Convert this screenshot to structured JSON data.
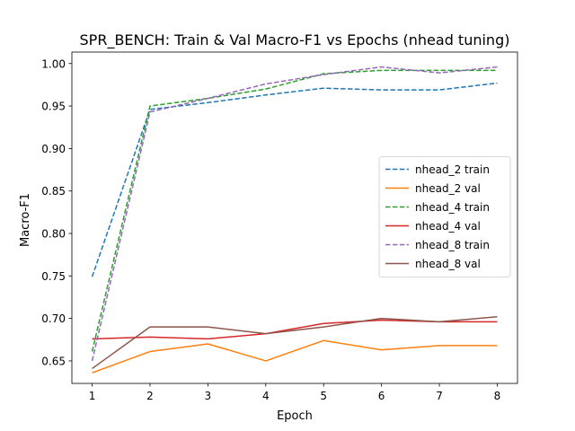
{
  "chart_data": {
    "type": "line",
    "title": "SPR_BENCH: Train & Val Macro-F1 vs Epochs (nhead tuning)",
    "xlabel": "Epoch",
    "ylabel": "Macro-F1",
    "x": [
      1,
      2,
      3,
      4,
      5,
      6,
      7,
      8
    ],
    "xlim": [
      0.65,
      8.35
    ],
    "ylim": [
      0.6235,
      1.0135
    ],
    "xticks": [
      "1",
      "2",
      "3",
      "4",
      "5",
      "6",
      "7",
      "8"
    ],
    "yticks": [
      0.65,
      0.7,
      0.75,
      0.8,
      0.85,
      0.9,
      0.95,
      1.0
    ],
    "ytick_labels": [
      "0.65",
      "0.70",
      "0.75",
      "0.80",
      "0.85",
      "0.90",
      "0.95",
      "1.00"
    ],
    "grid": false,
    "legend_position": "center-right",
    "series": [
      {
        "name": "nhead_2 train",
        "color": "#1f77b4",
        "dash": "dashed",
        "values": [
          0.749,
          0.946,
          0.954,
          0.963,
          0.971,
          0.969,
          0.969,
          0.977
        ]
      },
      {
        "name": "nhead_2 val",
        "color": "#ff7f0e",
        "dash": "solid",
        "values": [
          0.636,
          0.661,
          0.67,
          0.65,
          0.674,
          0.663,
          0.668,
          0.668
        ]
      },
      {
        "name": "nhead_4 train",
        "color": "#2ca02c",
        "dash": "dashed",
        "values": [
          0.661,
          0.95,
          0.959,
          0.97,
          0.988,
          0.992,
          0.992,
          0.992
        ]
      },
      {
        "name": "nhead_4 val",
        "color": "#d62728",
        "dash": "solid",
        "values": [
          0.676,
          0.678,
          0.676,
          0.682,
          0.694,
          0.698,
          0.696,
          0.696
        ]
      },
      {
        "name": "nhead_8 train",
        "color": "#9467bd",
        "dash": "dashed",
        "values": [
          0.65,
          0.943,
          0.959,
          0.976,
          0.987,
          0.996,
          0.989,
          0.996
        ]
      },
      {
        "name": "nhead_8 val",
        "color": "#8c564b",
        "dash": "solid",
        "values": [
          0.641,
          0.69,
          0.69,
          0.682,
          0.69,
          0.7,
          0.696,
          0.702
        ]
      }
    ]
  }
}
